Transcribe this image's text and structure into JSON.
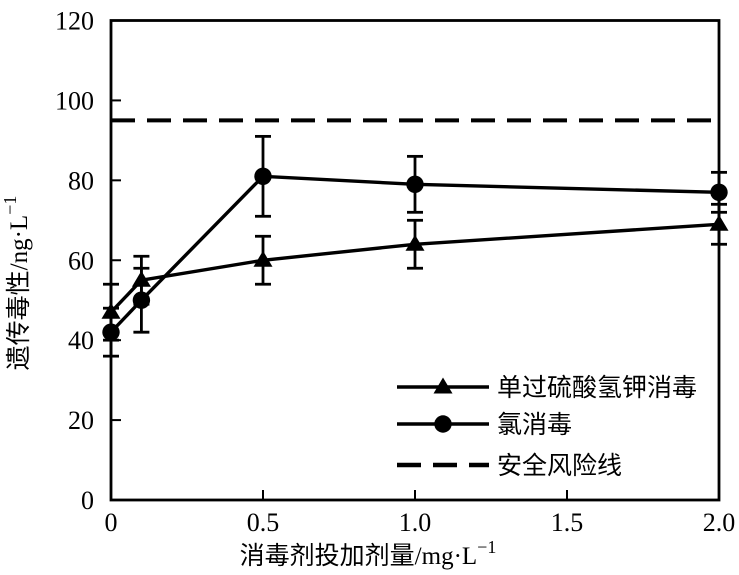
{
  "figure": {
    "background_color": "#ffffff",
    "ink_color": "#000000"
  },
  "chart_data": {
    "type": "line",
    "title": "",
    "xlabel": "消毒剂投加剂量/mg·L⁻¹",
    "ylabel": "遗传毒性/ng·L⁻¹",
    "xlim": [
      0,
      2.0
    ],
    "ylim": [
      0,
      120
    ],
    "grid": false,
    "xticks": [
      {
        "v": 0,
        "label": "0"
      },
      {
        "v": 0.5,
        "label": "0.5"
      },
      {
        "v": 1.0,
        "label": "1.0"
      },
      {
        "v": 1.5,
        "label": "1.5"
      },
      {
        "v": 2.0,
        "label": "2.0"
      }
    ],
    "yticks": [
      {
        "v": 0,
        "label": "0"
      },
      {
        "v": 20,
        "label": "20"
      },
      {
        "v": 40,
        "label": "40"
      },
      {
        "v": 60,
        "label": "60"
      },
      {
        "v": 80,
        "label": "80"
      },
      {
        "v": 100,
        "label": "100"
      },
      {
        "v": 120,
        "label": "120"
      }
    ],
    "x": [
      0,
      0.1,
      0.5,
      1.0,
      2.0
    ],
    "series": [
      {
        "name": "单过硫酸氢钾消毒",
        "marker": "triangle",
        "line": "solid",
        "color": "#000000",
        "values": [
          47,
          55,
          60,
          64,
          69
        ],
        "errors": [
          7,
          6,
          6,
          6,
          5
        ]
      },
      {
        "name": "氯消毒",
        "marker": "circle",
        "line": "solid",
        "color": "#000000",
        "values": [
          42,
          50,
          81,
          79,
          77
        ],
        "errors": [
          6,
          8,
          10,
          7,
          5
        ]
      }
    ],
    "reference_line": {
      "name": "安全风险线",
      "value": 95,
      "style": "dashed",
      "color": "#000000"
    },
    "legend": {
      "position": "lower-right",
      "items": [
        "单过硫酸氢钾消毒",
        "氯消毒",
        "安全风险线"
      ]
    }
  }
}
